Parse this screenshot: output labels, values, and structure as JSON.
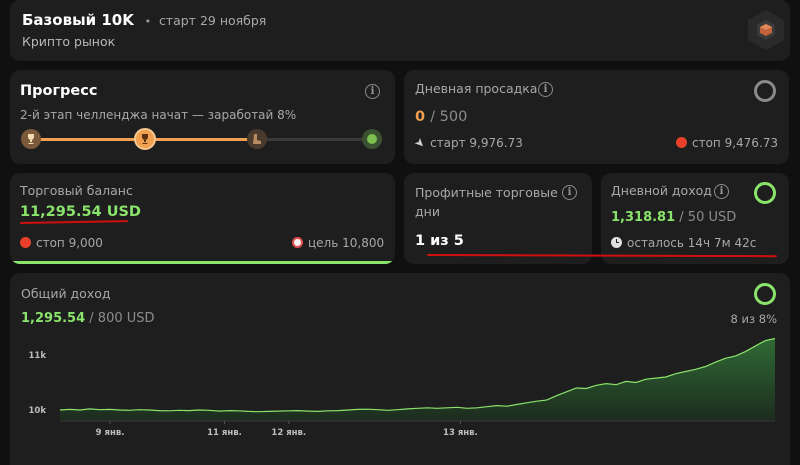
{
  "header": {
    "title": "Базовый 10K",
    "start": "старт 29 ноября",
    "market": "Крипто рынок"
  },
  "progress": {
    "title": "Прогресс",
    "subtitle": "2-й этап челленджа начат — заработай 8%",
    "fraction": 0.66
  },
  "drawdown": {
    "title": "Дневная просадка",
    "current": "0",
    "limit": "/ 500",
    "start_label": "старт 9,976.73",
    "stop_label": "стоп 9,476.73"
  },
  "balance": {
    "title": "Торговый баланс",
    "value": "11,295.54 USD",
    "stop_label": "стоп 9,000",
    "target_label": "цель 10,800"
  },
  "profit_days": {
    "title": "Профитные торговые дни",
    "value": "1 из 5"
  },
  "daily_income": {
    "title": "Дневной доход",
    "current": "1,318.81",
    "target": "/ 50 USD",
    "remaining": "осталось 14ч 7м 42с"
  },
  "total_income": {
    "title": "Общий доход",
    "current": "1,295.54",
    "target": "/ 800 USD",
    "percent": "8 из 8%"
  },
  "colors": {
    "accent_green": "#8ae36a",
    "orange": "#f0a050",
    "red_stop": "#e8402a",
    "underline_red": "#d01010",
    "card_bg": "#1e1e1e"
  },
  "chart_data": {
    "type": "area",
    "title": "",
    "xlabel": "",
    "ylabel": "",
    "x_tick_labels": [
      "9 янв.",
      "11 янв.",
      "12 янв.",
      "13 янв."
    ],
    "y_tick_labels": [
      "11k",
      "10k"
    ],
    "ylim": [
      9800,
      11400
    ],
    "grid": false,
    "values": [
      10000,
      10010,
      10000,
      10020,
      10005,
      10010,
      10000,
      9995,
      10005,
      10000,
      9990,
      9985,
      9995,
      9990,
      10000,
      9995,
      9980,
      9990,
      9985,
      9975,
      9970,
      9975,
      9980,
      9985,
      9990,
      9980,
      9975,
      9985,
      9990,
      10000,
      10010,
      10015,
      10005,
      9995,
      10005,
      10020,
      10030,
      10040,
      10030,
      10040,
      10050,
      10030,
      10040,
      10060,
      10080,
      10070,
      10100,
      10130,
      10160,
      10180,
      10260,
      10330,
      10400,
      10390,
      10450,
      10480,
      10460,
      10520,
      10500,
      10560,
      10580,
      10600,
      10660,
      10700,
      10740,
      10790,
      10870,
      10940,
      10980,
      11060,
      11160,
      11260,
      11300
    ]
  }
}
